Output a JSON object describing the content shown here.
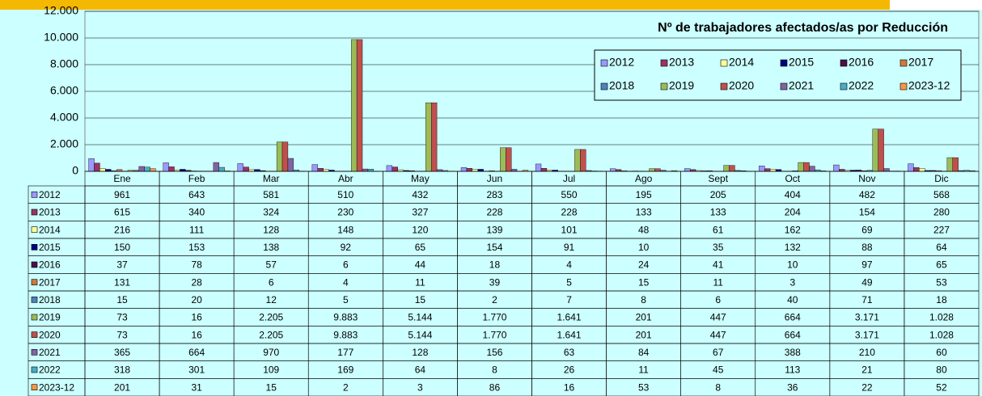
{
  "chart_data": {
    "type": "bar",
    "title": "Nº de trabajadores afectados/as por Reducción",
    "categories": [
      "Ene",
      "Feb",
      "Mar",
      "Abr",
      "May",
      "Jun",
      "Jul",
      "Ago",
      "Sept",
      "Oct",
      "Nov",
      "Dic"
    ],
    "ylim": [
      0,
      12000
    ],
    "yticks": [
      0,
      {
        "value": 2000,
        "label": "2.000"
      },
      {
        "value": 4000,
        "label": "4.000"
      },
      {
        "value": 6000,
        "label": "6.000"
      },
      {
        "value": 8000,
        "label": "8.000"
      },
      {
        "value": 10000,
        "label": "10.000"
      },
      {
        "value": 12000,
        "label": "12.000"
      }
    ],
    "grid": true,
    "legend": "top-right",
    "series": [
      {
        "name": "2012",
        "color": "#9999ff",
        "values": [
          961,
          643,
          581,
          510,
          432,
          283,
          550,
          195,
          205,
          404,
          482,
          568
        ]
      },
      {
        "name": "2013",
        "color": "#993366",
        "values": [
          615,
          340,
          324,
          230,
          327,
          228,
          228,
          133,
          133,
          204,
          154,
          280
        ]
      },
      {
        "name": "2014",
        "color": "#ffff99",
        "values": [
          216,
          111,
          128,
          148,
          120,
          139,
          101,
          48,
          61,
          162,
          69,
          227
        ]
      },
      {
        "name": "2015",
        "color": "#000080",
        "values": [
          150,
          153,
          138,
          92,
          65,
          154,
          91,
          10,
          35,
          132,
          88,
          64
        ]
      },
      {
        "name": "2016",
        "color": "#4b0f4b",
        "values": [
          37,
          78,
          57,
          6,
          44,
          18,
          4,
          24,
          41,
          10,
          97,
          65
        ]
      },
      {
        "name": "2017",
        "color": "#cc7a3d",
        "values": [
          131,
          28,
          6,
          4,
          11,
          39,
          5,
          15,
          11,
          3,
          49,
          53
        ]
      },
      {
        "name": "2018",
        "color": "#4f81bd",
        "values": [
          15,
          20,
          12,
          5,
          15,
          2,
          7,
          8,
          6,
          40,
          71,
          18
        ]
      },
      {
        "name": "2019",
        "color": "#9bbb59",
        "values": [
          73,
          16,
          2205,
          9883,
          5144,
          1770,
          1641,
          201,
          447,
          664,
          3171,
          1028
        ],
        "value_labels": [
          "73",
          "16",
          "2.205",
          "9.883",
          "5.144",
          "1.770",
          "1.641",
          "201",
          "447",
          "664",
          "3.171",
          "1.028"
        ]
      },
      {
        "name": "2020",
        "color": "#c0504d",
        "values": [
          73,
          16,
          2205,
          9883,
          5144,
          1770,
          1641,
          201,
          447,
          664,
          3171,
          1028
        ],
        "value_labels": [
          "73",
          "16",
          "2.205",
          "9.883",
          "5.144",
          "1.770",
          "1.641",
          "201",
          "447",
          "664",
          "3.171",
          "1.028"
        ]
      },
      {
        "name": "2021",
        "color": "#8064a2",
        "values": [
          365,
          664,
          970,
          177,
          128,
          156,
          63,
          84,
          67,
          388,
          210,
          60
        ]
      },
      {
        "name": "2022",
        "color": "#4bacc6",
        "values": [
          318,
          301,
          109,
          169,
          64,
          8,
          26,
          11,
          45,
          113,
          21,
          80
        ]
      },
      {
        "name": "2023-12",
        "color": "#f79646",
        "values": [
          201,
          31,
          15,
          2,
          3,
          86,
          16,
          53,
          8,
          36,
          22,
          52
        ]
      }
    ]
  }
}
